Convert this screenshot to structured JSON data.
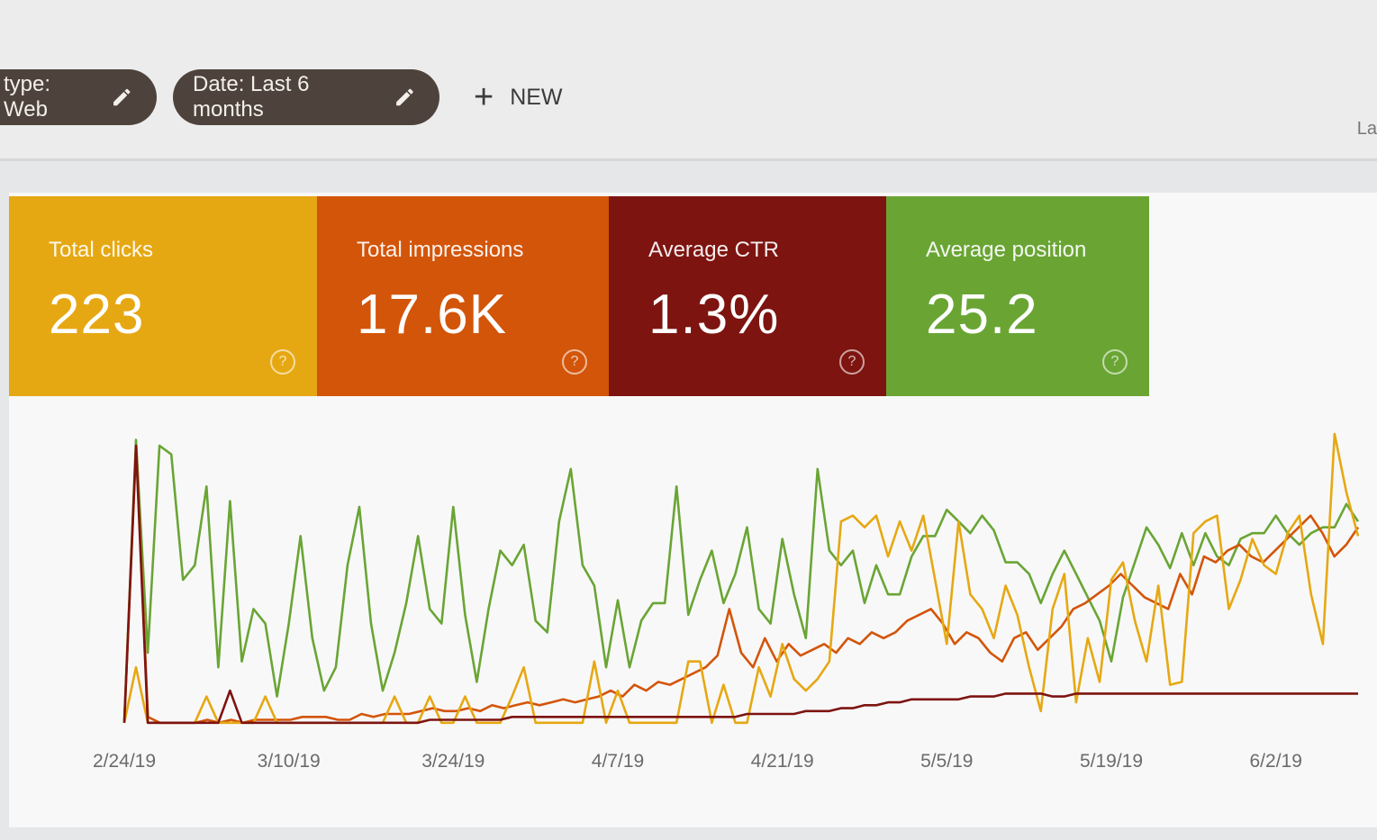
{
  "filters": {
    "chips": [
      {
        "label": "type: Web"
      },
      {
        "label": "Date: Last 6 months"
      }
    ],
    "new_label": "NEW",
    "cutoff_text": "La"
  },
  "metrics": [
    {
      "label": "Total clicks",
      "value": "223",
      "color": "#e6a812"
    },
    {
      "label": "Total impressions",
      "value": "17.6K",
      "color": "#d35509"
    },
    {
      "label": "Average CTR",
      "value": "1.3%",
      "color": "#7d1410"
    },
    {
      "label": "Average position",
      "value": "25.2",
      "color": "#6aa534"
    }
  ],
  "chart_data": {
    "type": "line",
    "x_tick_labels": [
      "2/24/19",
      "3/10/19",
      "3/24/19",
      "4/7/19",
      "4/21/19",
      "5/5/19",
      "5/19/19",
      "6/2/19"
    ],
    "x_tick_days": [
      0,
      14,
      28,
      42,
      56,
      70,
      84,
      98
    ],
    "x_range_days": [
      0,
      105
    ],
    "y_range": [
      0,
      100
    ],
    "y_unit": "relative (axis unlabeled)",
    "series": [
      {
        "name": "Average position",
        "color": "#6aa534",
        "values": [
          2,
          98,
          25,
          96,
          93,
          50,
          55,
          82,
          20,
          77,
          22,
          40,
          35,
          10,
          35,
          65,
          30,
          12,
          20,
          55,
          75,
          35,
          12,
          25,
          42,
          65,
          40,
          35,
          75,
          38,
          15,
          40,
          60,
          55,
          62,
          36,
          32,
          70,
          88,
          55,
          48,
          20,
          43,
          20,
          36,
          42,
          42,
          82,
          38,
          50,
          60,
          42,
          52,
          68,
          40,
          35,
          64,
          45,
          30,
          88,
          60,
          55,
          60,
          42,
          55,
          45,
          45,
          58,
          65,
          65,
          74,
          70,
          66,
          72,
          67,
          56,
          56,
          52,
          42,
          52,
          60,
          52,
          44,
          36,
          22,
          44,
          56,
          68,
          62,
          54,
          66,
          55,
          66,
          58,
          55,
          64,
          66,
          66,
          72,
          66,
          62,
          66,
          68,
          68,
          76,
          70
        ]
      },
      {
        "name": "Total impressions",
        "color": "#d35509",
        "values": [
          1,
          96,
          3,
          1,
          1,
          1,
          1,
          2,
          1,
          2,
          1,
          2,
          2,
          2,
          2,
          3,
          3,
          3,
          2,
          2,
          4,
          3,
          4,
          4,
          4,
          5,
          6,
          5,
          5,
          6,
          5,
          7,
          6,
          7,
          8,
          7,
          8,
          9,
          8,
          9,
          10,
          12,
          10,
          14,
          12,
          15,
          14,
          16,
          18,
          20,
          24,
          40,
          25,
          20,
          30,
          22,
          28,
          24,
          26,
          28,
          25,
          30,
          28,
          32,
          30,
          32,
          36,
          38,
          40,
          35,
          28,
          32,
          30,
          25,
          22,
          30,
          32,
          26,
          30,
          34,
          40,
          42,
          45,
          48,
          52,
          48,
          44,
          42,
          40,
          52,
          45,
          58,
          56,
          60,
          62,
          58,
          56,
          60,
          64,
          68,
          72,
          66,
          58,
          62,
          68
        ]
      },
      {
        "name": "Total clicks",
        "color": "#e6a812",
        "values": [
          1,
          20,
          1,
          1,
          1,
          1,
          1,
          10,
          1,
          1,
          1,
          1,
          10,
          1,
          1,
          1,
          1,
          1,
          1,
          1,
          1,
          1,
          1,
          10,
          1,
          1,
          10,
          1,
          1,
          10,
          1,
          1,
          1,
          10,
          20,
          1,
          1,
          1,
          1,
          1,
          22,
          1,
          12,
          1,
          1,
          1,
          1,
          1,
          22,
          22,
          1,
          14,
          1,
          1,
          20,
          10,
          28,
          16,
          12,
          16,
          22,
          70,
          72,
          68,
          72,
          58,
          70,
          60,
          72,
          50,
          28,
          70,
          45,
          40,
          30,
          48,
          38,
          20,
          5,
          40,
          52,
          8,
          30,
          15,
          50,
          56,
          36,
          22,
          48,
          14,
          15,
          66,
          70,
          72,
          40,
          50,
          64,
          55,
          52,
          66,
          72,
          45,
          28,
          100,
          80,
          65
        ]
      },
      {
        "name": "Average CTR",
        "color": "#7d1410",
        "values": [
          1,
          96,
          1,
          1,
          1,
          1,
          1,
          1,
          1,
          12,
          1,
          1,
          1,
          1,
          1,
          1,
          1,
          1,
          1,
          1,
          1,
          1,
          1,
          1,
          1,
          1,
          2,
          2,
          2,
          2,
          2,
          2,
          2,
          3,
          3,
          3,
          3,
          3,
          3,
          3,
          3,
          3,
          3,
          3,
          3,
          3,
          3,
          3,
          3,
          3,
          3,
          3,
          3,
          4,
          4,
          4,
          4,
          4,
          5,
          5,
          5,
          6,
          6,
          7,
          7,
          8,
          8,
          9,
          9,
          9,
          9,
          9,
          10,
          10,
          10,
          11,
          11,
          11,
          11,
          10,
          10,
          11,
          11,
          11,
          11,
          11,
          11,
          11,
          11,
          11,
          11,
          11,
          11,
          11,
          11,
          11,
          11,
          11,
          11,
          11,
          11,
          11,
          11,
          11,
          11,
          11
        ]
      }
    ],
    "grid": false,
    "legend": "none"
  }
}
